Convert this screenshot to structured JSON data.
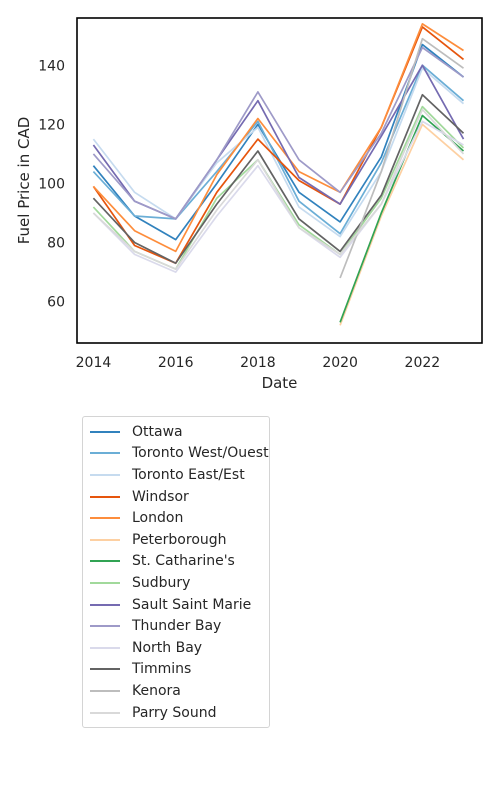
{
  "chart_data": {
    "type": "line",
    "title": "",
    "xlabel": "Date",
    "ylabel": "Fuel Price in CAD",
    "xlim": [
      2013.6,
      2023.45
    ],
    "ylim": [
      46,
      156
    ],
    "xticks": [
      2014,
      2016,
      2018,
      2020,
      2022
    ],
    "yticks": [
      60,
      80,
      100,
      120,
      140
    ],
    "grid": false,
    "legend_position": "below",
    "x": [
      2014,
      2015,
      2016,
      2017,
      2018,
      2019,
      2020,
      2021,
      2022,
      2023
    ],
    "series": [
      {
        "name": "Ottawa",
        "color": "#3182bd",
        "values": [
          106,
          89,
          81,
          100,
          120,
          97,
          87,
          109,
          147,
          136
        ]
      },
      {
        "name": "Toronto West/Ouest",
        "color": "#6baed6",
        "values": [
          104,
          89,
          88,
          104,
          121,
          94,
          83,
          107,
          140,
          128
        ]
      },
      {
        "name": "Toronto East/Est",
        "color": "#c6dbef",
        "values": [
          115,
          97,
          88,
          107,
          119,
          92,
          82,
          104,
          139,
          127
        ]
      },
      {
        "name": "Windsor",
        "color": "#e6550d",
        "values": [
          99,
          79,
          73,
          97,
          115,
          101,
          93,
          119,
          153,
          142
        ]
      },
      {
        "name": "London",
        "color": "#fd8d3c",
        "values": [
          99,
          84,
          77,
          103,
          122,
          104,
          97,
          119,
          154,
          145
        ]
      },
      {
        "name": "Peterborough",
        "color": "#fdd0a2",
        "values": [
          null,
          null,
          null,
          null,
          null,
          null,
          52,
          89,
          120,
          108
        ]
      },
      {
        "name": "St. Catharine's",
        "color": "#31a354",
        "values": [
          null,
          null,
          null,
          null,
          null,
          null,
          53,
          90,
          123,
          111
        ]
      },
      {
        "name": "Sudbury",
        "color": "#a1d99b",
        "values": [
          92,
          77,
          71,
          95,
          108,
          86,
          76,
          95,
          126,
          112
        ]
      },
      {
        "name": "Sault Saint Marie",
        "color": "#756bb1",
        "values": [
          113,
          94,
          88,
          108,
          128,
          102,
          93,
          116,
          140,
          115
        ]
      },
      {
        "name": "Thunder Bay",
        "color": "#9e9ac8",
        "values": [
          110,
          94,
          88,
          108,
          131,
          108,
          97,
          117,
          146,
          136
        ]
      },
      {
        "name": "North Bay",
        "color": "#dadaeb",
        "values": [
          90,
          76,
          70,
          89,
          106,
          85,
          75,
          93,
          121,
          113
        ]
      },
      {
        "name": "Timmins",
        "color": "#636363",
        "values": [
          95,
          80,
          73,
          93,
          111,
          88,
          77,
          96,
          130,
          117
        ]
      },
      {
        "name": "Kenora",
        "color": "#bdbdbd",
        "values": [
          null,
          null,
          null,
          null,
          null,
          null,
          68,
          104,
          149,
          139
        ]
      },
      {
        "name": "Parry Sound",
        "color": "#d9d9d9",
        "values": [
          90,
          77,
          71,
          91,
          108,
          85,
          76,
          93,
          125,
          110
        ]
      }
    ]
  }
}
